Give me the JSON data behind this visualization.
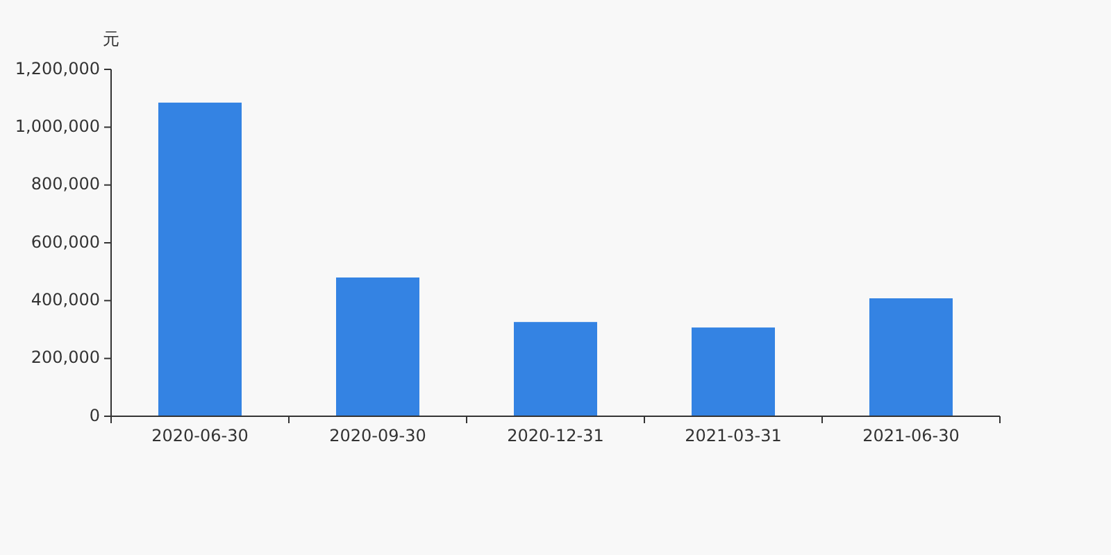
{
  "chart_data": {
    "type": "bar",
    "ylabel": "元",
    "categories": [
      "2020-06-30",
      "2020-09-30",
      "2020-12-31",
      "2021-03-31",
      "2021-06-30"
    ],
    "values": [
      1085000,
      480000,
      326000,
      307000,
      408000
    ],
    "color": "#3483e3",
    "ylim": [
      0,
      1200000
    ],
    "yticks": [
      {
        "value": 0,
        "label": "0"
      },
      {
        "value": 200000,
        "label": "200,000"
      },
      {
        "value": 400000,
        "label": "400,000"
      },
      {
        "value": 600000,
        "label": "600,000"
      },
      {
        "value": 800000,
        "label": "800,000"
      },
      {
        "value": 1000000,
        "label": "1,000,000"
      },
      {
        "value": 1200000,
        "label": "1,200,000"
      }
    ],
    "data_labels": false
  }
}
